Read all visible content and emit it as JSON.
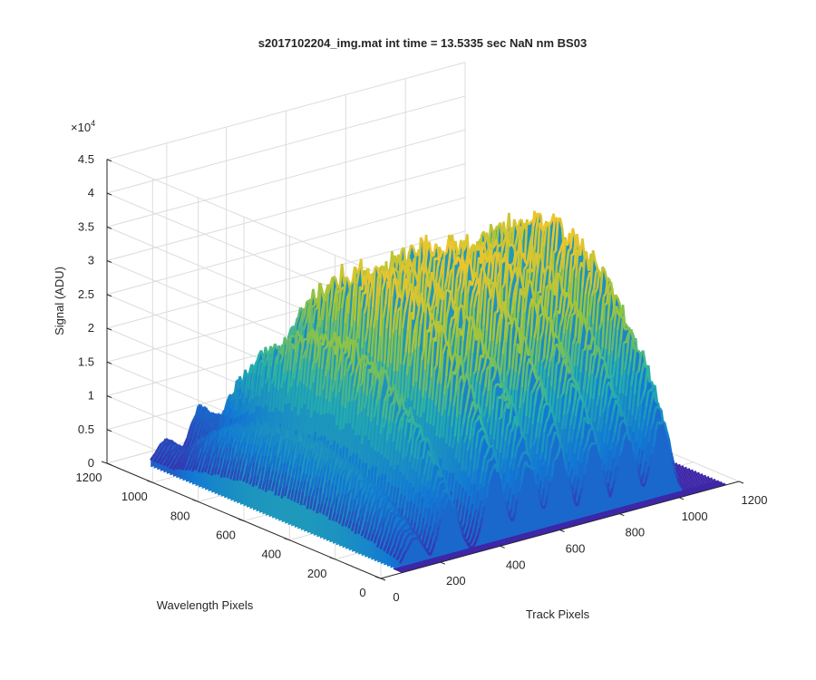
{
  "chart_data": {
    "type": "surface3d",
    "title": "s2017102204_img.mat int time = 13.5335 sec  NaN nm BS03",
    "zlabel": "Signal (ADU)",
    "wavelength_label": "Wavelength Pixels",
    "track_label": "Track Pixels",
    "z_exponent_label": "×10",
    "z_exponent_power": "4",
    "zlim": [
      0,
      45000
    ],
    "track_lim": [
      0,
      1200
    ],
    "wavelength_lim": [
      0,
      1200
    ],
    "z_ticks": [
      "0",
      "0.5",
      "1",
      "1.5",
      "2",
      "2.5",
      "3",
      "3.5",
      "4",
      "4.5"
    ],
    "track_ticks": [
      "0",
      "200",
      "400",
      "600",
      "800",
      "1000",
      "1200"
    ],
    "wavelength_ticks": [
      "0",
      "200",
      "400",
      "600",
      "800",
      "1000",
      "1200"
    ],
    "grid": true,
    "colormap": "parula",
    "track_range": [
      70,
      1160
    ],
    "wavelength_range": [
      0,
      1100
    ],
    "peaks": [
      {
        "track": 120,
        "signal": 12500
      },
      {
        "track": 235,
        "signal": 25000
      },
      {
        "track": 390,
        "signal": 33000
      },
      {
        "track": 500,
        "signal": 32000
      },
      {
        "track": 605,
        "signal": 34000
      },
      {
        "track": 720,
        "signal": 33000
      },
      {
        "track": 830,
        "signal": 32000
      },
      {
        "track": 945,
        "signal": 34000
      }
    ],
    "colors": {
      "low": "#3e26a8",
      "mid_low": "#1278d4",
      "mid": "#27b1a9",
      "mid_high": "#98c43d",
      "high": "#f4c52b"
    }
  }
}
